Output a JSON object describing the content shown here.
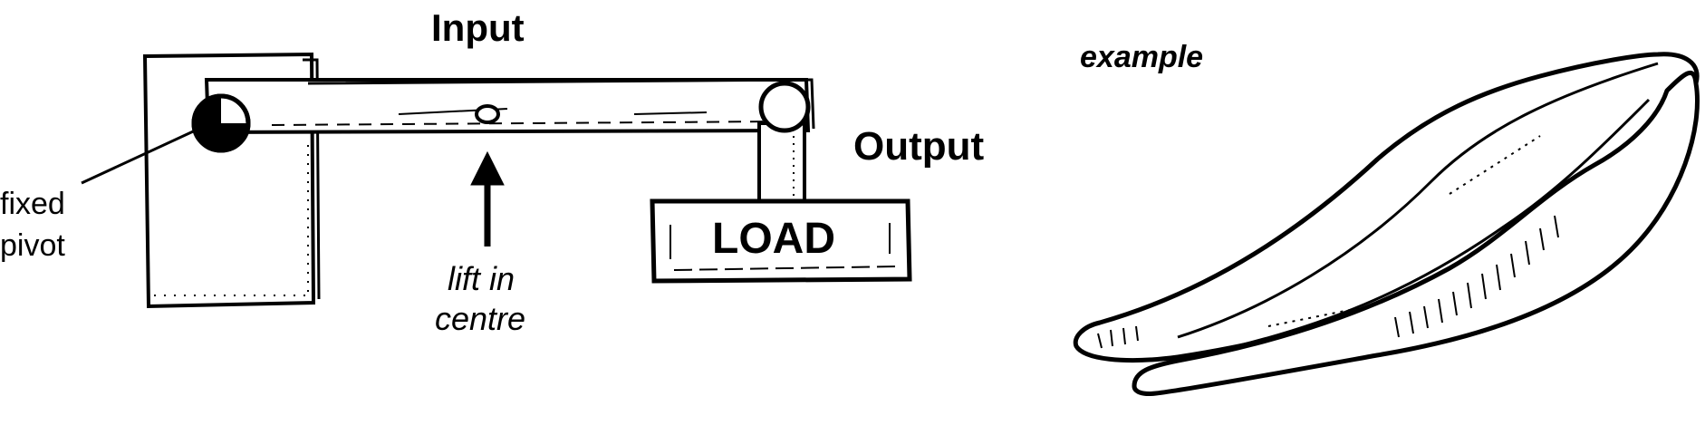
{
  "labels": {
    "input": "Input",
    "output": "Output",
    "fixed": "fixed",
    "pivot": "pivot",
    "lift_line1": "lift in",
    "lift_line2": "centre",
    "load": "LOAD",
    "example": "example"
  },
  "icons": {
    "pivot": "pivot-icon",
    "arrow": "up-arrow-icon",
    "tweezers": "tweezers-icon"
  },
  "colors": {
    "ink": "#000000",
    "paper": "#ffffff"
  }
}
